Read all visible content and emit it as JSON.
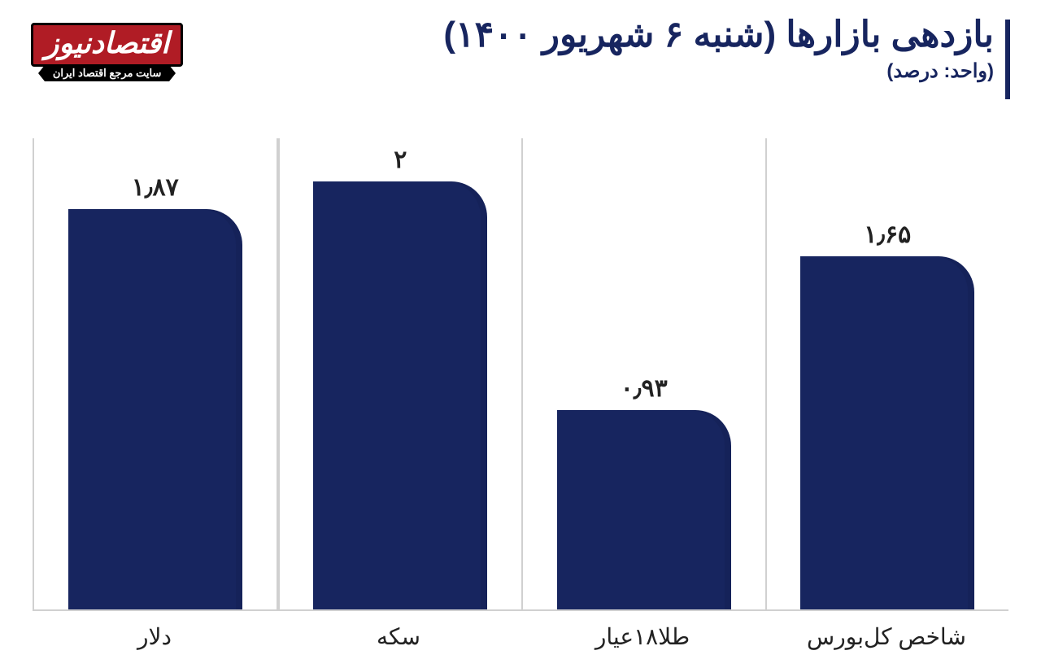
{
  "header": {
    "title": "بازدهی بازارها (شنبه ۶ شهریور ۱۴۰۰)",
    "subtitle": "(واحد: درصد)"
  },
  "logo": {
    "name": "اقتصادنیوز",
    "tagline": "سایت مرجع اقتصاد ایران"
  },
  "chart": {
    "type": "bar",
    "direction": "rtl",
    "categories": [
      "شاخص کل‌بورس",
      "طلا۱۸عیار",
      "سکه",
      "دلار"
    ],
    "value_labels": [
      "۱٫۶۵",
      "۰٫۹۳",
      "۲",
      "۱٫۸۷"
    ],
    "values": [
      1.65,
      0.93,
      2.0,
      1.87
    ],
    "ylim": [
      0,
      2.2
    ],
    "bar_color": "#17255f",
    "bar_corner_radius_tr": 44,
    "bar_width_pct": 72,
    "grid_color": "#d0d0d0",
    "background_color": "#ffffff",
    "label_color": "#222222",
    "value_fontsize": 30,
    "axis_fontsize": 28,
    "title_color": "#17255f",
    "title_fontsize": 44,
    "subtitle_fontsize": 24
  }
}
